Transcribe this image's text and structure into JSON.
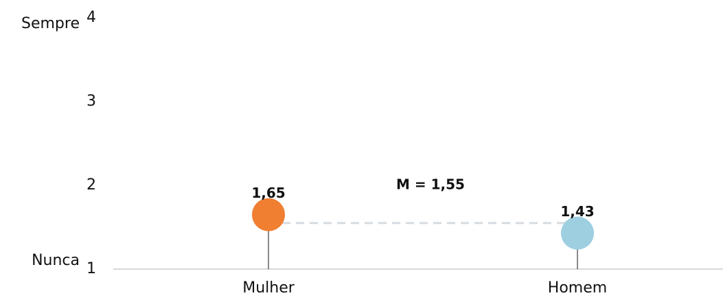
{
  "chart_data": {
    "type": "lollipop",
    "categories": [
      "Mulher",
      "Homem"
    ],
    "values": [
      1.65,
      1.43
    ],
    "value_labels": [
      "1,65",
      "1,43"
    ],
    "colors": [
      "#f07f32",
      "#9ecfe1"
    ],
    "ylim": [
      1,
      4
    ],
    "yticks": [
      1,
      2,
      3,
      4
    ],
    "ylabel_top": "Sempre",
    "ylabel_bottom": "Nunca",
    "mean": {
      "value": 1.55,
      "label": "M = 1,55"
    }
  }
}
